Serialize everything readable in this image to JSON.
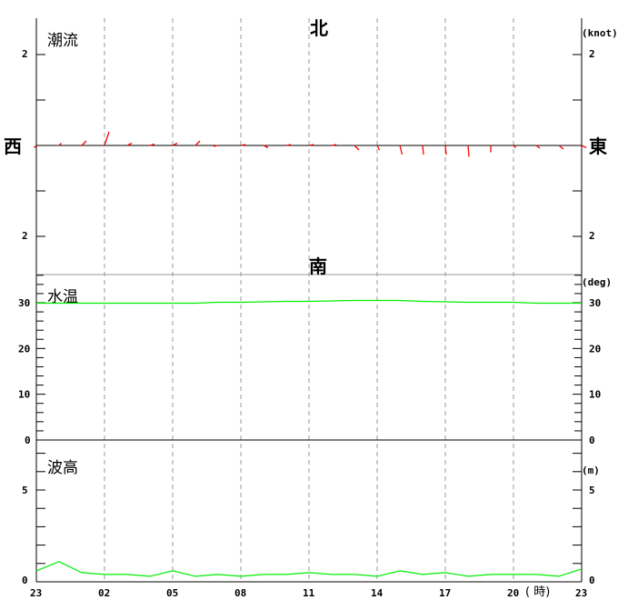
{
  "chart_data": [
    {
      "type": "line",
      "title": "潮流",
      "unit": "(knot)",
      "compass": {
        "north": "北",
        "south": "南",
        "west": "西",
        "east": "東"
      },
      "ylim": [
        -2.8,
        2.8
      ],
      "ytick_labels": [
        "2",
        "2"
      ],
      "x_hours_from_23": [
        0,
        1,
        2,
        3,
        4,
        5,
        6,
        7,
        8,
        9,
        10,
        11,
        12,
        13,
        14,
        15,
        16,
        17,
        18,
        19,
        20,
        21,
        22,
        23,
        24
      ],
      "vectors_east_north_knot": [
        [
          -0.05,
          -0.05
        ],
        [
          0.05,
          0.05
        ],
        [
          0.1,
          0.1
        ],
        [
          0.1,
          0.3
        ],
        [
          0.1,
          0.05
        ],
        [
          0.1,
          0.03
        ],
        [
          0.1,
          0.05
        ],
        [
          0.1,
          0.1
        ],
        [
          -0.1,
          -0.02
        ],
        [
          0.1,
          0.02
        ],
        [
          0.1,
          -0.05
        ],
        [
          0.1,
          0.02
        ],
        [
          0.1,
          0.02
        ],
        [
          0.1,
          0.02
        ],
        [
          0.1,
          -0.1
        ],
        [
          0.05,
          -0.1
        ],
        [
          0.05,
          -0.2
        ],
        [
          0.02,
          -0.2
        ],
        [
          0.02,
          -0.2
        ],
        [
          0.02,
          -0.25
        ],
        [
          0.0,
          -0.15
        ],
        [
          0.05,
          -0.05
        ],
        [
          0.08,
          -0.06
        ],
        [
          0.1,
          -0.08
        ],
        [
          0.1,
          -0.05
        ]
      ],
      "color": "#ff0000"
    },
    {
      "type": "line",
      "title": "水温",
      "unit": "(deg)",
      "ylim": [
        0,
        36
      ],
      "ytick_labels": [
        "0",
        "10",
        "20",
        "30"
      ],
      "values": [
        29.9,
        29.9,
        29.9,
        29.9,
        29.9,
        29.9,
        29.9,
        29.9,
        30.1,
        30.1,
        30.2,
        30.3,
        30.3,
        30.4,
        30.5,
        30.5,
        30.5,
        30.3,
        30.2,
        30.1,
        30.1,
        30.1,
        29.9,
        29.9,
        29.9
      ],
      "color": "#00ee00"
    },
    {
      "type": "line",
      "title": "波高",
      "unit": "(m)",
      "ylim": [
        0,
        7.7
      ],
      "ytick_labels": [
        "0",
        "5"
      ],
      "values": [
        0.6,
        1.1,
        0.5,
        0.4,
        0.4,
        0.3,
        0.6,
        0.3,
        0.4,
        0.3,
        0.4,
        0.4,
        0.5,
        0.4,
        0.4,
        0.3,
        0.6,
        0.4,
        0.5,
        0.3,
        0.4,
        0.4,
        0.4,
        0.3,
        0.7
      ],
      "color": "#00ee00"
    }
  ],
  "x_axis": {
    "tick_labels": [
      "23",
      "02",
      "05",
      "08",
      "11",
      "14",
      "17",
      "20",
      "23"
    ],
    "unit": "( 時)"
  }
}
